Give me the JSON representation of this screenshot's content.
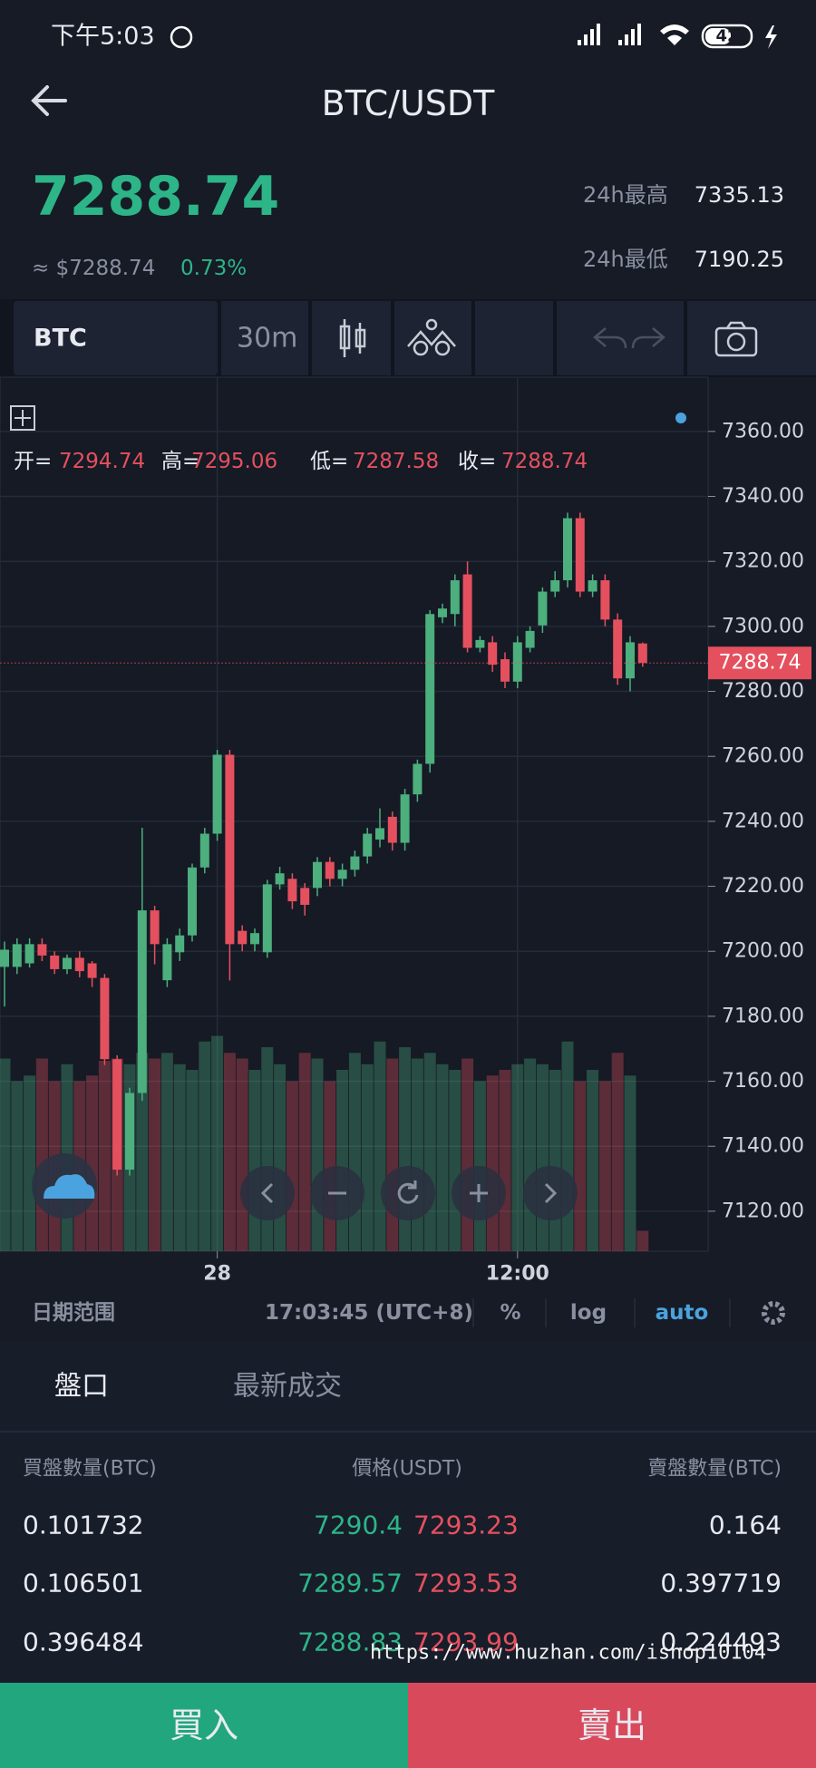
{
  "status": {
    "time": "下午5:03",
    "battery": "42"
  },
  "header": {
    "title": "BTC/USDT"
  },
  "ticker": {
    "price": "7288.74",
    "usd": "≈ $7288.74",
    "change": "0.73%",
    "high_label": "24h最高",
    "high": "7335.13",
    "low_label": "24h最低",
    "low": "7190.25"
  },
  "toolbar": {
    "symbol": "BTC",
    "interval": "30m"
  },
  "ohlc_labels": {
    "open": "开=",
    "high": "高=",
    "low": "低=",
    "close": "收="
  },
  "chart_data": {
    "type": "candlestick",
    "categories": [
      null,
      null,
      null,
      null,
      null,
      null,
      null,
      null,
      null,
      null,
      null,
      null,
      null,
      null,
      null,
      null,
      null,
      "28",
      null,
      null,
      null,
      null,
      null,
      null,
      null,
      null,
      null,
      null,
      null,
      null,
      null,
      null,
      null,
      null,
      null,
      null,
      null,
      null,
      null,
      null,
      null,
      "12:00",
      null,
      null,
      null,
      null,
      null,
      null,
      null,
      null,
      null,
      null
    ],
    "open": [
      7195.2,
      7195.2,
      7196.3,
      7202.2,
      7198.7,
      7194.5,
      7198.0,
      7196.3,
      7191.8,
      7166.8,
      7132.8,
      7156.4,
      7212.6,
      7191.1,
      7199.7,
      7204.9,
      7225.8,
      7236.2,
      7260.5,
      7206.3,
      7202.2,
      7199.7,
      7220.6,
      7222.3,
      7219.5,
      7219.5,
      7227.5,
      7222.3,
      7225.1,
      7229.2,
      7234.4,
      7241.4,
      7233.4,
      7248.3,
      7257.7,
      7302.8,
      7303.8,
      7316.0,
      7293.4,
      7295.1,
      7289.9,
      7283.0,
      7293.4,
      7300.3,
      7310.7,
      7314.2,
      7333.3,
      7310.7,
      7314.2,
      7302.1,
      7284.0,
      7294.74
    ],
    "high": [
      7203,
      7204,
      7204,
      7204,
      7200,
      7199,
      7200,
      7197,
      7193,
      7168,
      7158,
      7238,
      7214,
      7204,
      7207,
      7227,
      7238,
      7262,
      7262,
      7208,
      7207,
      7222,
      7226,
      7224,
      7221,
      7229,
      7229,
      7227,
      7231,
      7238,
      7244,
      7243,
      7250,
      7259,
      7305,
      7307,
      7316,
      7320,
      7297,
      7297,
      7292,
      7297,
      7300,
      7312,
      7317,
      7335,
      7335,
      7316,
      7316,
      7304,
      7297,
      7295.06
    ],
    "low": [
      7183,
      7193,
      7195,
      7197,
      7193,
      7193,
      7192,
      7189,
      7165,
      7131,
      7131,
      7154,
      7196,
      7189,
      7197,
      7203,
      7224,
      7234,
      7191,
      7200,
      7200,
      7198,
      7219,
      7213,
      7211,
      7217,
      7220,
      7220,
      7223,
      7227,
      7232,
      7231,
      7231,
      7246,
      7255,
      7301,
      7300,
      7292,
      7292,
      7286,
      7281,
      7281,
      7292,
      7298,
      7309,
      7312,
      7309,
      7309,
      7300,
      7282,
      7280,
      7287.58
    ],
    "close": [
      7200.5,
      7202.2,
      7202.2,
      7198.7,
      7194.5,
      7198.0,
      7193.9,
      7191.8,
      7166.8,
      7132.8,
      7156.4,
      7212.6,
      7202.2,
      7202.2,
      7204.9,
      7225.8,
      7236.2,
      7260.5,
      7202.2,
      7202.2,
      7205.6,
      7220.6,
      7224.0,
      7215.4,
      7214.3,
      7227.5,
      7222.3,
      7225.1,
      7229.2,
      7236.2,
      7237.9,
      7233.4,
      7248.3,
      7257.7,
      7303.8,
      7305.5,
      7314.2,
      7293.4,
      7295.8,
      7288.2,
      7283.0,
      7295.1,
      7298.6,
      7310.7,
      7314.2,
      7333.3,
      7310.7,
      7314.2,
      7302.1,
      7284.0,
      7295.1,
      7288.74
    ],
    "volume": [
      170,
      150,
      155,
      170,
      150,
      165,
      150,
      155,
      168,
      170,
      165,
      175,
      170,
      175,
      165,
      160,
      185,
      190,
      175,
      170,
      160,
      180,
      165,
      150,
      175,
      170,
      150,
      160,
      175,
      165,
      185,
      170,
      180,
      170,
      175,
      165,
      160,
      170,
      150,
      155,
      160,
      165,
      170,
      165,
      160,
      185,
      150,
      160,
      150,
      175,
      155,
      18
    ],
    "up_color": "#4caf7d",
    "down_color": "#e5505e",
    "ylim": [
      7107.7,
      7376.7
    ],
    "yticks": [
      {
        "value": 7120,
        "label": "7120.00"
      },
      {
        "value": 7140,
        "label": "7140.00"
      },
      {
        "value": 7160,
        "label": "7160.00"
      },
      {
        "value": 7180,
        "label": "7180.00"
      },
      {
        "value": 7200,
        "label": "7200.00"
      },
      {
        "value": 7220,
        "label": "7220.00"
      },
      {
        "value": 7240,
        "label": "7240.00"
      },
      {
        "value": 7260,
        "label": "7260.00"
      },
      {
        "value": 7280,
        "label": "7280.00"
      },
      {
        "value": 7300,
        "label": "7300.00"
      },
      {
        "value": 7320,
        "label": "7320.00"
      },
      {
        "value": 7340,
        "label": "7340.00"
      },
      {
        "value": 7360,
        "label": "7360.00"
      }
    ],
    "grid": true
  },
  "chart_footer": {
    "range": "日期范围",
    "time": "17:03:45 (UTC+8)",
    "percent": "%",
    "log": "log",
    "auto": "auto"
  },
  "tabs": [
    "盤口",
    "最新成交"
  ],
  "order_book": {
    "headers": [
      "買盤數量(BTC)",
      "價格(USDT)",
      "賣盤數量(BTC)"
    ],
    "rows": [
      [
        "0.101732",
        "7290.4",
        "7293.23",
        "0.164"
      ],
      [
        "0.106501",
        "7289.57",
        "7293.53",
        "0.397719"
      ],
      [
        "0.396484",
        "7288.83",
        "7293.99",
        "0.224493"
      ]
    ]
  },
  "watermark": "https://www.huzhan.com/ishop10104",
  "buttons": {
    "buy": "買入",
    "sell": "賣出"
  }
}
